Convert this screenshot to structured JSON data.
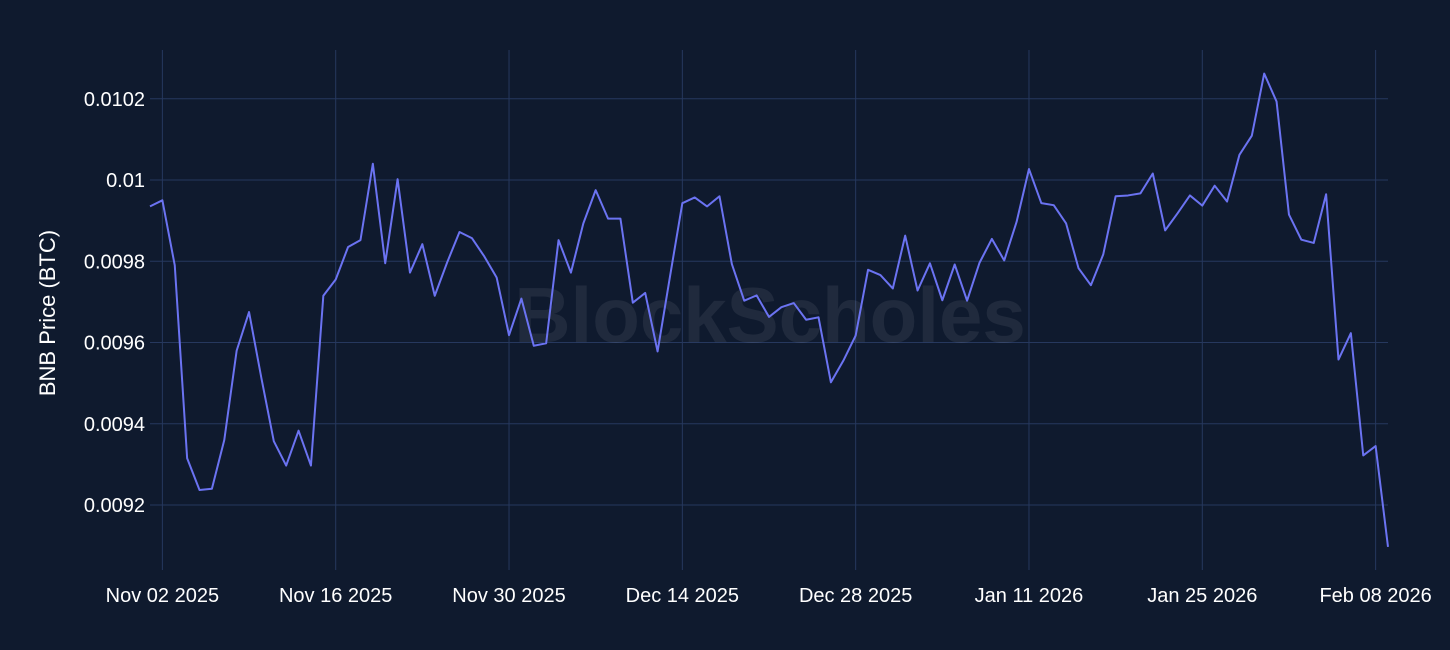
{
  "chart_data": {
    "type": "line",
    "title": "",
    "xlabel": "",
    "ylabel": "BNB Price (BTC)",
    "watermark": "BlockScholes",
    "grid": true,
    "colors": {
      "background": "#0f1a2e",
      "grid": "#26385e",
      "line": "#6b73f2"
    },
    "xlim": [
      "2025-11-01",
      "2026-02-09"
    ],
    "ylim": [
      0.00904,
      0.01032
    ],
    "x_ticks": [
      {
        "value": "2025-11-02",
        "label": "Nov 02 2025"
      },
      {
        "value": "2025-11-16",
        "label": "Nov 16 2025"
      },
      {
        "value": "2025-11-30",
        "label": "Nov 30 2025"
      },
      {
        "value": "2025-12-14",
        "label": "Dec 14 2025"
      },
      {
        "value": "2025-12-28",
        "label": "Dec 28 2025"
      },
      {
        "value": "2026-01-11",
        "label": "Jan 11 2026"
      },
      {
        "value": "2026-01-25",
        "label": "Jan 25 2026"
      },
      {
        "value": "2026-02-08",
        "label": "Feb 08 2026"
      }
    ],
    "y_ticks": [
      {
        "value": 0.0092,
        "label": "0.0092"
      },
      {
        "value": 0.0094,
        "label": "0.0094"
      },
      {
        "value": 0.0096,
        "label": "0.0096"
      },
      {
        "value": 0.0098,
        "label": "0.0098"
      },
      {
        "value": 0.01,
        "label": "0.01"
      },
      {
        "value": 0.0102,
        "label": "0.0102"
      }
    ],
    "series": [
      {
        "x": [
          "2025-11-01",
          "2025-11-02",
          "2025-11-03",
          "2025-11-04",
          "2025-11-05",
          "2025-11-06",
          "2025-11-07",
          "2025-11-08",
          "2025-11-09",
          "2025-11-10",
          "2025-11-11",
          "2025-11-12",
          "2025-11-13",
          "2025-11-14",
          "2025-11-15",
          "2025-11-16",
          "2025-11-17",
          "2025-11-18",
          "2025-11-19",
          "2025-11-20",
          "2025-11-21",
          "2025-11-22",
          "2025-11-23",
          "2025-11-24",
          "2025-11-25",
          "2025-11-26",
          "2025-11-27",
          "2025-11-28",
          "2025-11-29",
          "2025-11-30",
          "2025-12-01",
          "2025-12-02",
          "2025-12-03",
          "2025-12-04",
          "2025-12-05",
          "2025-12-06",
          "2025-12-07",
          "2025-12-08",
          "2025-12-09",
          "2025-12-10",
          "2025-12-11",
          "2025-12-12",
          "2025-12-13",
          "2025-12-14",
          "2025-12-15",
          "2025-12-16",
          "2025-12-17",
          "2025-12-18",
          "2025-12-19",
          "2025-12-20",
          "2025-12-21",
          "2025-12-22",
          "2025-12-23",
          "2025-12-24",
          "2025-12-25",
          "2025-12-26",
          "2025-12-27",
          "2025-12-28",
          "2025-12-29",
          "2025-12-30",
          "2025-12-31",
          "2026-01-01",
          "2026-01-02",
          "2026-01-03",
          "2026-01-04",
          "2026-01-05",
          "2026-01-06",
          "2026-01-07",
          "2026-01-08",
          "2026-01-09",
          "2026-01-10",
          "2026-01-11",
          "2026-01-12",
          "2026-01-13",
          "2026-01-14",
          "2026-01-15",
          "2026-01-16",
          "2026-01-17",
          "2026-01-18",
          "2026-01-19",
          "2026-01-20",
          "2026-01-21",
          "2026-01-22",
          "2026-01-23",
          "2026-01-24",
          "2026-01-25",
          "2026-01-26",
          "2026-01-27",
          "2026-01-28",
          "2026-01-29",
          "2026-01-30",
          "2026-01-31",
          "2026-02-01",
          "2026-02-02",
          "2026-02-03",
          "2026-02-04",
          "2026-02-05",
          "2026-02-06",
          "2026-02-07",
          "2026-02-08",
          "2026-02-09"
        ],
        "values": [
          0.009935,
          0.00995,
          0.00979,
          0.009315,
          0.009237,
          0.00924,
          0.00936,
          0.00958,
          0.009675,
          0.009512,
          0.009357,
          0.009297,
          0.009383,
          0.009297,
          0.009715,
          0.009755,
          0.009835,
          0.009852,
          0.01004,
          0.009795,
          0.010002,
          0.009772,
          0.009842,
          0.009715,
          0.009797,
          0.009872,
          0.009857,
          0.009812,
          0.00976,
          0.009618,
          0.009708,
          0.009592,
          0.009598,
          0.009852,
          0.009772,
          0.009893,
          0.009975,
          0.009905,
          0.009905,
          0.009698,
          0.009722,
          0.009578,
          0.009762,
          0.009943,
          0.009957,
          0.009935,
          0.00996,
          0.009793,
          0.009703,
          0.009716,
          0.009663,
          0.009687,
          0.009697,
          0.009656,
          0.009662,
          0.009502,
          0.009555,
          0.009617,
          0.009779,
          0.009766,
          0.009733,
          0.009863,
          0.009728,
          0.009795,
          0.009704,
          0.009792,
          0.009703,
          0.009796,
          0.009855,
          0.009802,
          0.009897,
          0.010027,
          0.009943,
          0.009938,
          0.009893,
          0.009783,
          0.009741,
          0.009817,
          0.00996,
          0.009962,
          0.009967,
          0.010016,
          0.009876,
          0.009918,
          0.009962,
          0.009937,
          0.009986,
          0.009947,
          0.010062,
          0.010109,
          0.010262,
          0.010193,
          0.009915,
          0.009853,
          0.009845,
          0.009965,
          0.009558,
          0.009623,
          0.009322,
          0.009345,
          0.009097
        ]
      }
    ]
  }
}
